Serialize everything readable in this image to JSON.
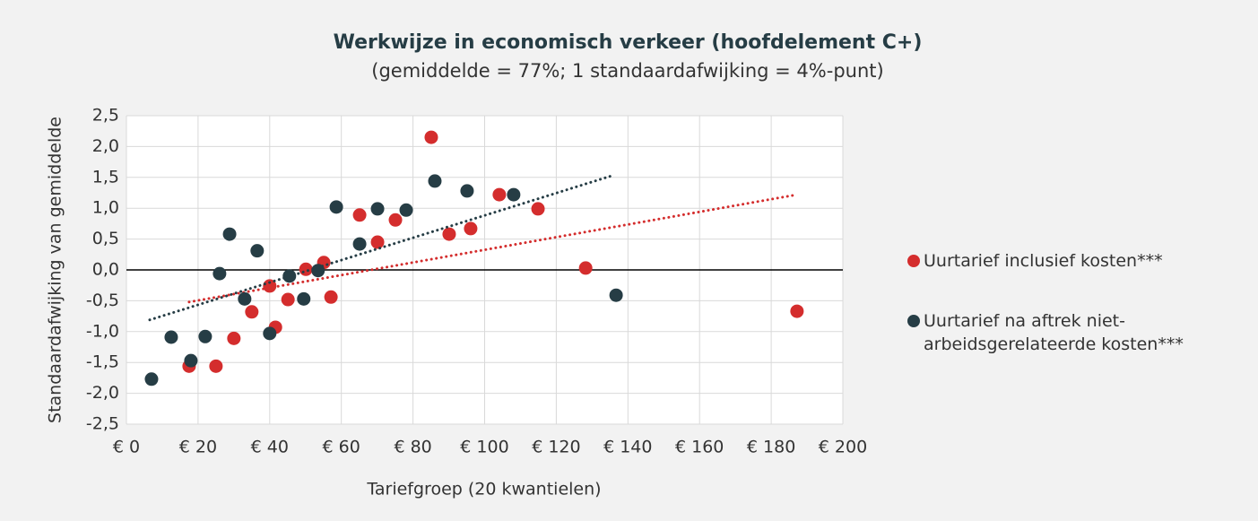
{
  "chart_data": {
    "type": "scatter",
    "title": "Werkwijze in economisch verkeer (hoofdelement C+)",
    "subtitle": "(gemiddelde = 77%; 1 standaardafwijking = 4%-punt)",
    "x_label": "Tariefgroep (20 kwantielen)",
    "y_label": "Standaardafwijking van gemiddelde",
    "xlim": [
      0,
      200
    ],
    "ylim": [
      -2.5,
      2.5
    ],
    "xticks": [
      {
        "value": 0,
        "label": "€ 0"
      },
      {
        "value": 20,
        "label": "€ 20"
      },
      {
        "value": 40,
        "label": "€ 40"
      },
      {
        "value": 60,
        "label": "€ 60"
      },
      {
        "value": 80,
        "label": "€ 80"
      },
      {
        "value": 100,
        "label": "€ 100"
      },
      {
        "value": 120,
        "label": "€ 120"
      },
      {
        "value": 140,
        "label": "€ 140"
      },
      {
        "value": 160,
        "label": "€ 160"
      },
      {
        "value": 180,
        "label": "€ 180"
      },
      {
        "value": 200,
        "label": "€ 200"
      }
    ],
    "yticks": [
      {
        "value": 2.5,
        "label": "2,5"
      },
      {
        "value": 2,
        "label": "2,0"
      },
      {
        "value": 1.5,
        "label": "1,5"
      },
      {
        "value": 1,
        "label": "1,0"
      },
      {
        "value": 0.5,
        "label": "0,5"
      },
      {
        "value": 0,
        "label": "0,0"
      },
      {
        "value": -0.5,
        "label": "-0,5"
      },
      {
        "value": -1,
        "label": "-1,0"
      },
      {
        "value": -1.5,
        "label": "-1,5"
      },
      {
        "value": -2,
        "label": "-2,0"
      },
      {
        "value": -2.5,
        "label": "-2,5"
      }
    ],
    "grid": true,
    "legend": "right",
    "series": [
      {
        "name": "Uurtarief inclusief kosten***",
        "color": "#d42d2d",
        "x": [
          17.5,
          25.0,
          30.0,
          35.0,
          40.0,
          41.6,
          45.1,
          50.1,
          55.1,
          57.1,
          65.1,
          70.1,
          75.1,
          85.1,
          90.1,
          96.1,
          104.1,
          114.9,
          128.2,
          187.2
        ],
        "values": [
          -1.56,
          -1.56,
          -1.11,
          -0.68,
          -0.26,
          -0.93,
          -0.48,
          0.01,
          0.12,
          -0.44,
          0.89,
          0.45,
          0.81,
          2.15,
          0.58,
          0.67,
          1.22,
          0.99,
          0.03,
          -0.67
        ],
        "trend": {
          "x": [
            17.5,
            187.2
          ],
          "y": [
            -0.52,
            1.22
          ]
        }
      },
      {
        "name": "Uurtarief na aftrek niet-arbeidsgerelateerde kosten***",
        "color": "#263d45",
        "x": [
          7.0,
          12.5,
          18.0,
          22.0,
          26.0,
          28.8,
          33.0,
          36.5,
          40.0,
          45.5,
          49.5,
          53.5,
          58.6,
          65.1,
          70.1,
          78.1,
          86.1,
          95.1,
          108.1,
          136.7
        ],
        "values": [
          -1.77,
          -1.09,
          -1.47,
          -1.08,
          -0.06,
          0.58,
          -0.47,
          0.31,
          -1.03,
          -0.1,
          -0.47,
          -0.01,
          1.02,
          0.42,
          0.99,
          0.97,
          1.44,
          1.28,
          1.22,
          -0.41
        ],
        "trend": {
          "x": [
            6.5,
            135.7
          ],
          "y": [
            -0.81,
            1.53
          ]
        }
      }
    ]
  }
}
